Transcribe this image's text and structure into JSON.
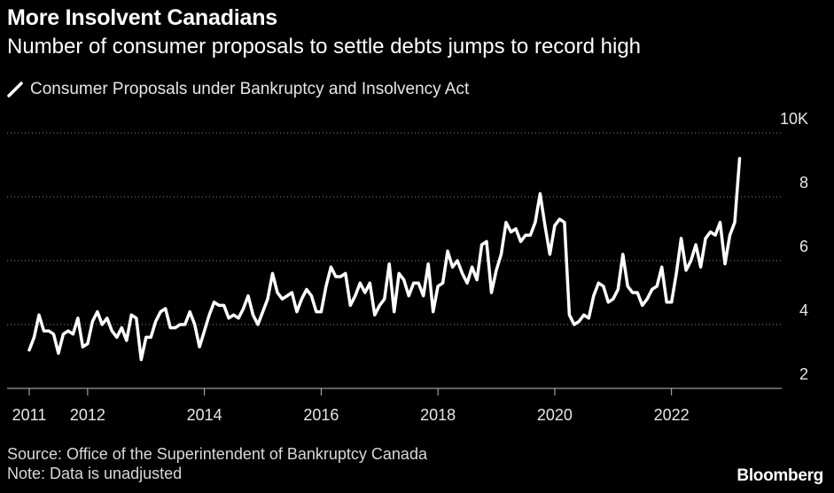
{
  "title": "More Insolvent Canadians",
  "subtitle": "Number of consumer proposals to settle debts jumps to record high",
  "source": "Source: Office of the Superintendent of Bankruptcy Canada",
  "note": "Note: Data is unadjusted",
  "brand": "Bloomberg",
  "colors": {
    "background": "#000000",
    "line": "#ffffff",
    "grid": "#8c8c8c"
  },
  "chart_data": {
    "type": "line",
    "title": "More Insolvent Canadians",
    "subtitle": "Number of consumer proposals to settle debts jumps to record high",
    "ylabel": "",
    "xlabel": "",
    "ylim": [
      2,
      10
    ],
    "y_ticks": [
      2,
      4,
      6,
      8,
      10
    ],
    "y_tick_labels": [
      "2",
      "4",
      "6",
      "8",
      "10K"
    ],
    "x_range": [
      2011,
      2023.25
    ],
    "x_ticks": [
      2011,
      2012,
      2014,
      2016,
      2018,
      2020,
      2022
    ],
    "x_tick_labels": [
      "2011",
      "2012",
      "2014",
      "2016",
      "2018",
      "2020",
      "2022"
    ],
    "grid": true,
    "legend_position": "top-left",
    "series": [
      {
        "name": "Consumer Proposals under Bankruptcy and Insolvency Act",
        "x": [
          2011.0,
          2011.0833,
          2011.1667,
          2011.25,
          2011.3333,
          2011.4167,
          2011.5,
          2011.5833,
          2011.6667,
          2011.75,
          2011.8333,
          2011.9167,
          2012.0,
          2012.0833,
          2012.1667,
          2012.25,
          2012.3333,
          2012.4167,
          2012.5,
          2012.5833,
          2012.6667,
          2012.75,
          2012.8333,
          2012.9167,
          2013.0,
          2013.0833,
          2013.1667,
          2013.25,
          2013.3333,
          2013.4167,
          2013.5,
          2013.5833,
          2013.6667,
          2013.75,
          2013.8333,
          2013.9167,
          2014.0,
          2014.0833,
          2014.1667,
          2014.25,
          2014.3333,
          2014.4167,
          2014.5,
          2014.5833,
          2014.6667,
          2014.75,
          2014.8333,
          2014.9167,
          2015.0,
          2015.0833,
          2015.1667,
          2015.25,
          2015.3333,
          2015.4167,
          2015.5,
          2015.5833,
          2015.6667,
          2015.75,
          2015.8333,
          2015.9167,
          2016.0,
          2016.0833,
          2016.1667,
          2016.25,
          2016.3333,
          2016.4167,
          2016.5,
          2016.5833,
          2016.6667,
          2016.75,
          2016.8333,
          2016.9167,
          2017.0,
          2017.0833,
          2017.1667,
          2017.25,
          2017.3333,
          2017.4167,
          2017.5,
          2017.5833,
          2017.6667,
          2017.75,
          2017.8333,
          2017.9167,
          2018.0,
          2018.0833,
          2018.1667,
          2018.25,
          2018.3333,
          2018.4167,
          2018.5,
          2018.5833,
          2018.6667,
          2018.75,
          2018.8333,
          2018.9167,
          2019.0,
          2019.0833,
          2019.1667,
          2019.25,
          2019.3333,
          2019.4167,
          2019.5,
          2019.5833,
          2019.6667,
          2019.75,
          2019.8333,
          2019.9167,
          2020.0,
          2020.0833,
          2020.1667,
          2020.25,
          2020.3333,
          2020.4167,
          2020.5,
          2020.5833,
          2020.6667,
          2020.75,
          2020.8333,
          2020.9167,
          2021.0,
          2021.0833,
          2021.1667,
          2021.25,
          2021.3333,
          2021.4167,
          2021.5,
          2021.5833,
          2021.6667,
          2021.75,
          2021.8333,
          2021.9167,
          2022.0,
          2022.0833,
          2022.1667,
          2022.25,
          2022.3333,
          2022.4167,
          2022.5,
          2022.5833,
          2022.6667,
          2022.75,
          2022.8333,
          2022.9167,
          2023.0,
          2023.0833,
          2023.1667
        ],
        "values": [
          3.2,
          3.6,
          4.3,
          3.8,
          3.8,
          3.7,
          3.1,
          3.7,
          3.8,
          3.7,
          4.2,
          3.3,
          3.4,
          4.1,
          4.4,
          4.0,
          4.2,
          3.8,
          3.6,
          3.9,
          3.5,
          4.3,
          4.2,
          2.9,
          3.6,
          3.6,
          4.1,
          4.4,
          4.5,
          3.9,
          3.9,
          4.0,
          4.0,
          4.4,
          4.0,
          3.3,
          3.8,
          4.3,
          4.7,
          4.6,
          4.6,
          4.2,
          4.3,
          4.2,
          4.5,
          4.9,
          4.3,
          4.0,
          4.4,
          4.8,
          5.6,
          5.0,
          4.8,
          4.9,
          5.0,
          4.4,
          4.8,
          5.1,
          4.9,
          4.4,
          4.4,
          5.2,
          5.8,
          5.5,
          5.5,
          5.6,
          4.6,
          4.9,
          5.3,
          5.0,
          5.3,
          4.3,
          4.6,
          4.8,
          5.9,
          4.4,
          5.6,
          5.4,
          4.9,
          5.3,
          5.3,
          4.9,
          5.9,
          4.4,
          5.2,
          5.3,
          6.3,
          5.8,
          6.0,
          5.6,
          5.3,
          5.8,
          5.4,
          6.5,
          6.6,
          5.0,
          5.7,
          6.2,
          7.2,
          6.9,
          7.0,
          6.6,
          6.8,
          6.8,
          7.2,
          8.1,
          7.1,
          6.2,
          7.1,
          7.3,
          7.2,
          4.3,
          4.0,
          4.1,
          4.3,
          4.2,
          4.9,
          5.3,
          5.2,
          4.7,
          4.8,
          5.1,
          6.2,
          5.2,
          5.0,
          5.0,
          4.6,
          4.8,
          5.1,
          5.2,
          5.8,
          4.7,
          4.7,
          5.6,
          6.7,
          5.7,
          6.0,
          6.5,
          5.8,
          6.7,
          6.9,
          6.8,
          7.2,
          5.9,
          6.8,
          7.2,
          9.2
        ]
      }
    ]
  }
}
